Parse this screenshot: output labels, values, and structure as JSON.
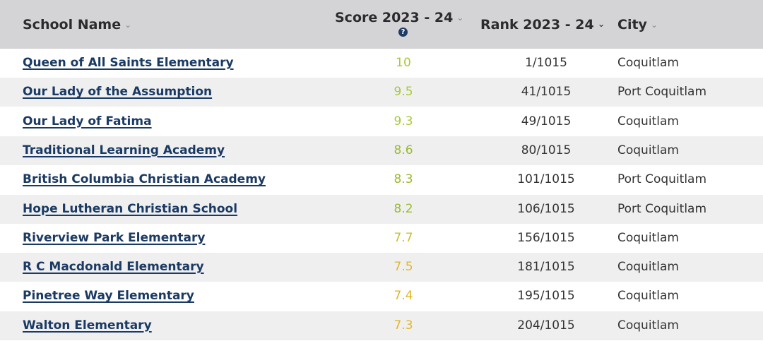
{
  "header": {
    "school_name": "School Name",
    "score": "Score 2023 - 24",
    "rank": "Rank 2023 - 24",
    "city": "City",
    "info_icon_symbol": "?"
  },
  "colors": {
    "header_bg": "#d4d4d6",
    "link": "#1a3a63",
    "score_10": "#a9c93a",
    "score_9": "#a9c93a",
    "score_8": "#9bbb2e",
    "score_7": "#e0b72a"
  },
  "rows": [
    {
      "name": "Queen of All Saints Elementary",
      "score": "10",
      "rank": "1/1015",
      "city": "Coquitlam",
      "score_color": "#a9c93a"
    },
    {
      "name": "Our Lady of the Assumption",
      "score": "9.5",
      "rank": "41/1015",
      "city": "Port Coquitlam",
      "score_color": "#a9c93a"
    },
    {
      "name": "Our Lady of Fatima",
      "score": "9.3",
      "rank": "49/1015",
      "city": "Coquitlam",
      "score_color": "#a9c93a"
    },
    {
      "name": "Traditional Learning Academy",
      "score": "8.6",
      "rank": "80/1015",
      "city": "Coquitlam",
      "score_color": "#9bbb2e"
    },
    {
      "name": "British Columbia Christian Academy",
      "score": "8.3",
      "rank": "101/1015",
      "city": "Port Coquitlam",
      "score_color": "#9bbb2e"
    },
    {
      "name": "Hope Lutheran Christian School",
      "score": "8.2",
      "rank": "106/1015",
      "city": "Port Coquitlam",
      "score_color": "#9bbb2e"
    },
    {
      "name": "Riverview Park Elementary",
      "score": "7.7",
      "rank": "156/1015",
      "city": "Coquitlam",
      "score_color": "#c9c031"
    },
    {
      "name": "R C Macdonald Elementary",
      "score": "7.5",
      "rank": "181/1015",
      "city": "Coquitlam",
      "score_color": "#e0b72a"
    },
    {
      "name": "Pinetree Way Elementary",
      "score": "7.4",
      "rank": "195/1015",
      "city": "Coquitlam",
      "score_color": "#e0b72a"
    },
    {
      "name": "Walton Elementary",
      "score": "7.3",
      "rank": "204/1015",
      "city": "Coquitlam",
      "score_color": "#e0b72a"
    }
  ]
}
